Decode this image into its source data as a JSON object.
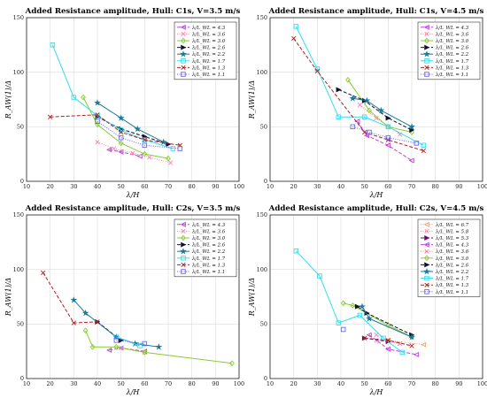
{
  "chart_data": [
    {
      "type": "line",
      "title": "Added Resistance amplitude, Hull: C1s, V=3.5 m/s",
      "xlabel": "λ/H",
      "ylabel": "R_AW(1)/Δ",
      "xlim": [
        10,
        100
      ],
      "ylim": [
        0,
        150
      ],
      "xticks": [
        "10",
        "20",
        "30",
        "40",
        "50",
        "60",
        "70",
        "80",
        "90",
        "100"
      ],
      "yticks": [
        "0",
        "50",
        "100",
        "150"
      ],
      "grid": true,
      "legend_position": "top-right",
      "series": [
        {
          "name": "λ/L_WL = 4.3",
          "color": "#c040e0",
          "marker": "triangle-left",
          "dash": "4,2",
          "x": [
            45,
            50,
            58
          ],
          "y": [
            29,
            27,
            23
          ]
        },
        {
          "name": "λ/L_WL = 3.6",
          "color": "#ff80b0",
          "marker": "x",
          "dash": "1,1.5",
          "x": [
            40,
            47,
            55,
            62,
            71
          ],
          "y": [
            36,
            30,
            26,
            22,
            17
          ]
        },
        {
          "name": "λ/L_WL = 3.0",
          "color": "#88cc33",
          "marker": "diamond",
          "dash": "",
          "x": [
            34,
            40,
            50,
            60,
            70
          ],
          "y": [
            77,
            52,
            35,
            25,
            21
          ]
        },
        {
          "name": "λ/L_WL = 2.6",
          "color": "#111133",
          "marker": "triangle-right",
          "dash": "4,2",
          "x": [
            40,
            50,
            60,
            70
          ],
          "y": [
            59,
            48,
            41,
            34
          ]
        },
        {
          "name": "λ/L_WL = 2.2",
          "color": "#1a7a9a",
          "marker": "star",
          "dash": "",
          "x": [
            40,
            50,
            57,
            68
          ],
          "y": [
            72,
            58,
            48,
            36
          ]
        },
        {
          "name": "λ/L_WL = 1.7",
          "color": "#33ddee",
          "marker": "square",
          "dash": "",
          "x": [
            21,
            30,
            40,
            50,
            60,
            72
          ],
          "y": [
            125,
            77,
            60,
            47,
            38,
            30
          ]
        },
        {
          "name": "λ/L_WL = 1.3",
          "color": "#aa2222",
          "marker": "x",
          "dash": "4,2",
          "x": [
            20,
            40,
            50,
            60,
            75
          ],
          "y": [
            59,
            61,
            45,
            38,
            33
          ]
        },
        {
          "name": "λ/L_WL = 1.1",
          "color": "#6666ff",
          "marker": "square",
          "dash": "1,1.5",
          "x": [
            40,
            50,
            60,
            75
          ],
          "y": [
            55,
            40,
            33,
            30
          ]
        }
      ]
    },
    {
      "type": "line",
      "title": "Added Resistance amplitude, Hull: C1s, V=4.5 m/s",
      "xlabel": "λ/H",
      "ylabel": "R_AW(1)/Δ",
      "xlim": [
        10,
        100
      ],
      "ylim": [
        0,
        150
      ],
      "xticks": [
        "10",
        "20",
        "30",
        "40",
        "50",
        "60",
        "70",
        "80",
        "90",
        "100"
      ],
      "yticks": [
        "0",
        "50",
        "100",
        "150"
      ],
      "grid": true,
      "legend_position": "top-right",
      "series": [
        {
          "name": "λ/L_WL = 4.3",
          "color": "#c040e0",
          "marker": "triangle-left",
          "dash": "4,2",
          "x": [
            47,
            51,
            60,
            70
          ],
          "y": [
            55,
            42,
            33,
            19
          ]
        },
        {
          "name": "λ/L_WL = 3.6",
          "color": "#ff80b0",
          "marker": "x",
          "dash": "1,1.5",
          "x": [
            48,
            55,
            65
          ],
          "y": [
            70,
            58,
            43
          ]
        },
        {
          "name": "λ/L_WL = 3.0",
          "color": "#88cc33",
          "marker": "diamond",
          "dash": "",
          "x": [
            43,
            52,
            60,
            70
          ],
          "y": [
            93,
            65,
            50,
            45
          ]
        },
        {
          "name": "λ/L_WL = 2.6",
          "color": "#111133",
          "marker": "triangle-right",
          "dash": "4,2",
          "x": [
            39,
            50,
            60,
            70
          ],
          "y": [
            84,
            74,
            58,
            47
          ]
        },
        {
          "name": "λ/L_WL = 2.2",
          "color": "#1a7a9a",
          "marker": "star",
          "dash": "",
          "x": [
            45,
            51,
            57,
            70
          ],
          "y": [
            76,
            74,
            65,
            50
          ]
        },
        {
          "name": "λ/L_WL = 1.7",
          "color": "#33ddee",
          "marker": "square",
          "dash": "",
          "x": [
            21,
            30,
            39,
            50,
            60,
            75
          ],
          "y": [
            142,
            103,
            59,
            59,
            50,
            33
          ]
        },
        {
          "name": "λ/L_WL = 1.3",
          "color": "#aa2222",
          "marker": "x",
          "dash": "4,2",
          "x": [
            20,
            30,
            50,
            60,
            75
          ],
          "y": [
            131,
            101,
            45,
            38,
            28
          ]
        },
        {
          "name": "λ/L_WL = 1.1",
          "color": "#6666ff",
          "marker": "square",
          "dash": "1,1.5",
          "x": [
            45,
            52,
            60,
            72
          ],
          "y": [
            50,
            45,
            40,
            35
          ]
        }
      ]
    },
    {
      "type": "line",
      "title": "Added Resistance amplitude, Hull: C2s, V=3.5 m/s",
      "xlabel": "λ/H",
      "ylabel": "R_AW(1)/Δ",
      "xlim": [
        10,
        100
      ],
      "ylim": [
        0,
        150
      ],
      "xticks": [
        "10",
        "20",
        "30",
        "40",
        "50",
        "60",
        "70",
        "80",
        "90",
        "100"
      ],
      "yticks": [
        "0",
        "50",
        "100",
        "150"
      ],
      "grid": true,
      "legend_position": "top-right",
      "series": [
        {
          "name": "λ/L_WL = 4.3",
          "color": "#c040e0",
          "marker": "triangle-left",
          "dash": "4,2",
          "x": [
            45,
            50,
            60
          ],
          "y": [
            26,
            28,
            25
          ]
        },
        {
          "name": "λ/L_WL = 3.6",
          "color": "#ff80b0",
          "marker": "x",
          "dash": "1,1.5",
          "x": [
            50,
            60
          ],
          "y": [
            28,
            24
          ]
        },
        {
          "name": "λ/L_WL = 3.0",
          "color": "#88cc33",
          "marker": "diamond",
          "dash": "",
          "x": [
            35,
            38,
            48,
            60,
            97
          ],
          "y": [
            44,
            29,
            29,
            24,
            14
          ]
        },
        {
          "name": "λ/L_WL = 2.6",
          "color": "#111133",
          "marker": "triangle-right",
          "dash": "4,2",
          "x": [
            40,
            50
          ],
          "y": [
            52,
            35
          ]
        },
        {
          "name": "λ/L_WL = 2.2",
          "color": "#1a7a9a",
          "marker": "star",
          "dash": "",
          "x": [
            30,
            35,
            48,
            56,
            66
          ],
          "y": [
            72,
            60,
            38,
            32,
            29
          ]
        },
        {
          "name": "λ/L_WL = 1.7",
          "color": "#33ddee",
          "marker": "square",
          "dash": "",
          "x": [
            48,
            58
          ],
          "y": [
            38,
            30
          ]
        },
        {
          "name": "λ/L_WL = 1.3",
          "color": "#aa2222",
          "marker": "x",
          "dash": "4,2",
          "x": [
            17,
            30,
            40
          ],
          "y": [
            97,
            51,
            52
          ]
        },
        {
          "name": "λ/L_WL = 1.1",
          "color": "#6666ff",
          "marker": "square",
          "dash": "1,1.5",
          "x": [
            48,
            60
          ],
          "y": [
            35,
            32
          ]
        }
      ]
    },
    {
      "type": "line",
      "title": "Added Resistance amplitude, Hull: C2s, V=4.5 m/s",
      "xlabel": "λ/H",
      "ylabel": "R_AW(1)/Δ",
      "xlim": [
        10,
        100
      ],
      "ylim": [
        0,
        150
      ],
      "xticks": [
        "10",
        "20",
        "30",
        "40",
        "50",
        "60",
        "70",
        "80",
        "90",
        "100"
      ],
      "yticks": [
        "0",
        "50",
        "100",
        "150"
      ],
      "grid": true,
      "legend_position": "top-right",
      "series": [
        {
          "name": "λ/L_WL = 6.7",
          "color": "#f0a070",
          "marker": "triangle-left",
          "dash": "1,1.5",
          "x": [
            60,
            75
          ],
          "y": [
            35,
            31
          ]
        },
        {
          "name": "λ/L_WL = 5.8",
          "color": "#ff80b0",
          "marker": "x",
          "dash": "1,1.5",
          "x": [
            55,
            65
          ],
          "y": [
            35,
            32
          ]
        },
        {
          "name": "λ/L_WL = 5.3",
          "color": "#770077",
          "marker": "triangle-right",
          "dash": "4,2",
          "x": [
            50,
            60
          ],
          "y": [
            37,
            34
          ]
        },
        {
          "name": "λ/L_WL = 4.3",
          "color": "#c040e0",
          "marker": "triangle-left",
          "dash": "4,2",
          "x": [
            52,
            60,
            72
          ],
          "y": [
            40,
            27,
            22
          ]
        },
        {
          "name": "λ/L_WL = 3.6",
          "color": "#ff80b0",
          "marker": "x",
          "dash": "1,1.5",
          "x": [
            55,
            65
          ],
          "y": [
            40,
            32
          ]
        },
        {
          "name": "λ/L_WL = 3.0",
          "color": "#88cc33",
          "marker": "diamond",
          "dash": "",
          "x": [
            41,
            45,
            60,
            70
          ],
          "y": [
            69,
            67,
            49,
            38
          ]
        },
        {
          "name": "λ/L_WL = 2.6",
          "color": "#111133",
          "marker": "triangle-right",
          "dash": "4,2",
          "x": [
            47,
            51,
            70
          ],
          "y": [
            66,
            60,
            40
          ]
        },
        {
          "name": "λ/L_WL = 2.2",
          "color": "#1a7a9a",
          "marker": "star",
          "dash": "",
          "x": [
            49,
            52,
            70
          ],
          "y": [
            66,
            55,
            38
          ]
        },
        {
          "name": "λ/L_WL = 1.7",
          "color": "#33ddee",
          "marker": "square",
          "dash": "",
          "x": [
            21,
            31,
            39,
            48,
            58,
            66
          ],
          "y": [
            117,
            94,
            51,
            58,
            37,
            24
          ]
        },
        {
          "name": "λ/L_WL = 1.3",
          "color": "#aa2222",
          "marker": "x",
          "dash": "4,2",
          "x": [
            50,
            60,
            70
          ],
          "y": [
            37,
            35,
            30
          ]
        },
        {
          "name": "λ/L_WL = 1.1",
          "color": "#6666ff",
          "marker": "square",
          "dash": "1,1.5",
          "x": [
            41
          ],
          "y": [
            45
          ]
        }
      ]
    }
  ]
}
